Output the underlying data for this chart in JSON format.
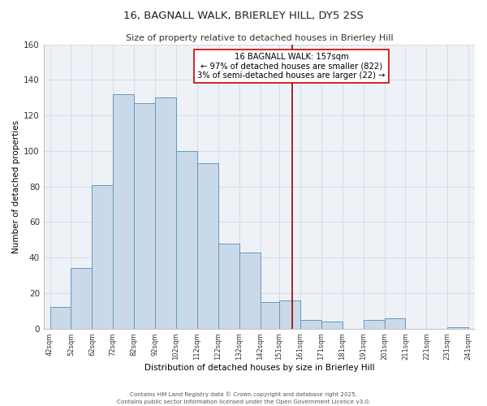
{
  "title": "16, BAGNALL WALK, BRIERLEY HILL, DY5 2SS",
  "subtitle": "Size of property relative to detached houses in Brierley Hill",
  "xlabel": "Distribution of detached houses by size in Brierley Hill",
  "ylabel": "Number of detached properties",
  "bar_color": "#c9d9ea",
  "bar_edge_color": "#6699bb",
  "background_color": "#eef2f7",
  "grid_color": "#d8dde8",
  "bins": [
    42,
    52,
    62,
    72,
    82,
    92,
    102,
    112,
    122,
    132,
    142,
    151,
    161,
    171,
    181,
    191,
    201,
    211,
    221,
    231,
    241
  ],
  "values": [
    12,
    34,
    81,
    132,
    127,
    130,
    100,
    93,
    48,
    43,
    15,
    16,
    5,
    4,
    0,
    5,
    6,
    0,
    0,
    1
  ],
  "tick_labels": [
    "42sqm",
    "52sqm",
    "62sqm",
    "72sqm",
    "82sqm",
    "92sqm",
    "102sqm",
    "112sqm",
    "122sqm",
    "132sqm",
    "142sqm",
    "151sqm",
    "161sqm",
    "171sqm",
    "181sqm",
    "191sqm",
    "201sqm",
    "211sqm",
    "221sqm",
    "231sqm",
    "241sqm"
  ],
  "vline_x": 157,
  "vline_color": "#990000",
  "annotation_box_text": "16 BAGNALL WALK: 157sqm\n← 97% of detached houses are smaller (822)\n3% of semi-detached houses are larger (22) →",
  "ylim": [
    0,
    160
  ],
  "yticks": [
    0,
    20,
    40,
    60,
    80,
    100,
    120,
    140,
    160
  ],
  "footer1": "Contains HM Land Registry data © Crown copyright and database right 2025.",
  "footer2": "Contains public sector information licensed under the Open Government Licence v3.0."
}
